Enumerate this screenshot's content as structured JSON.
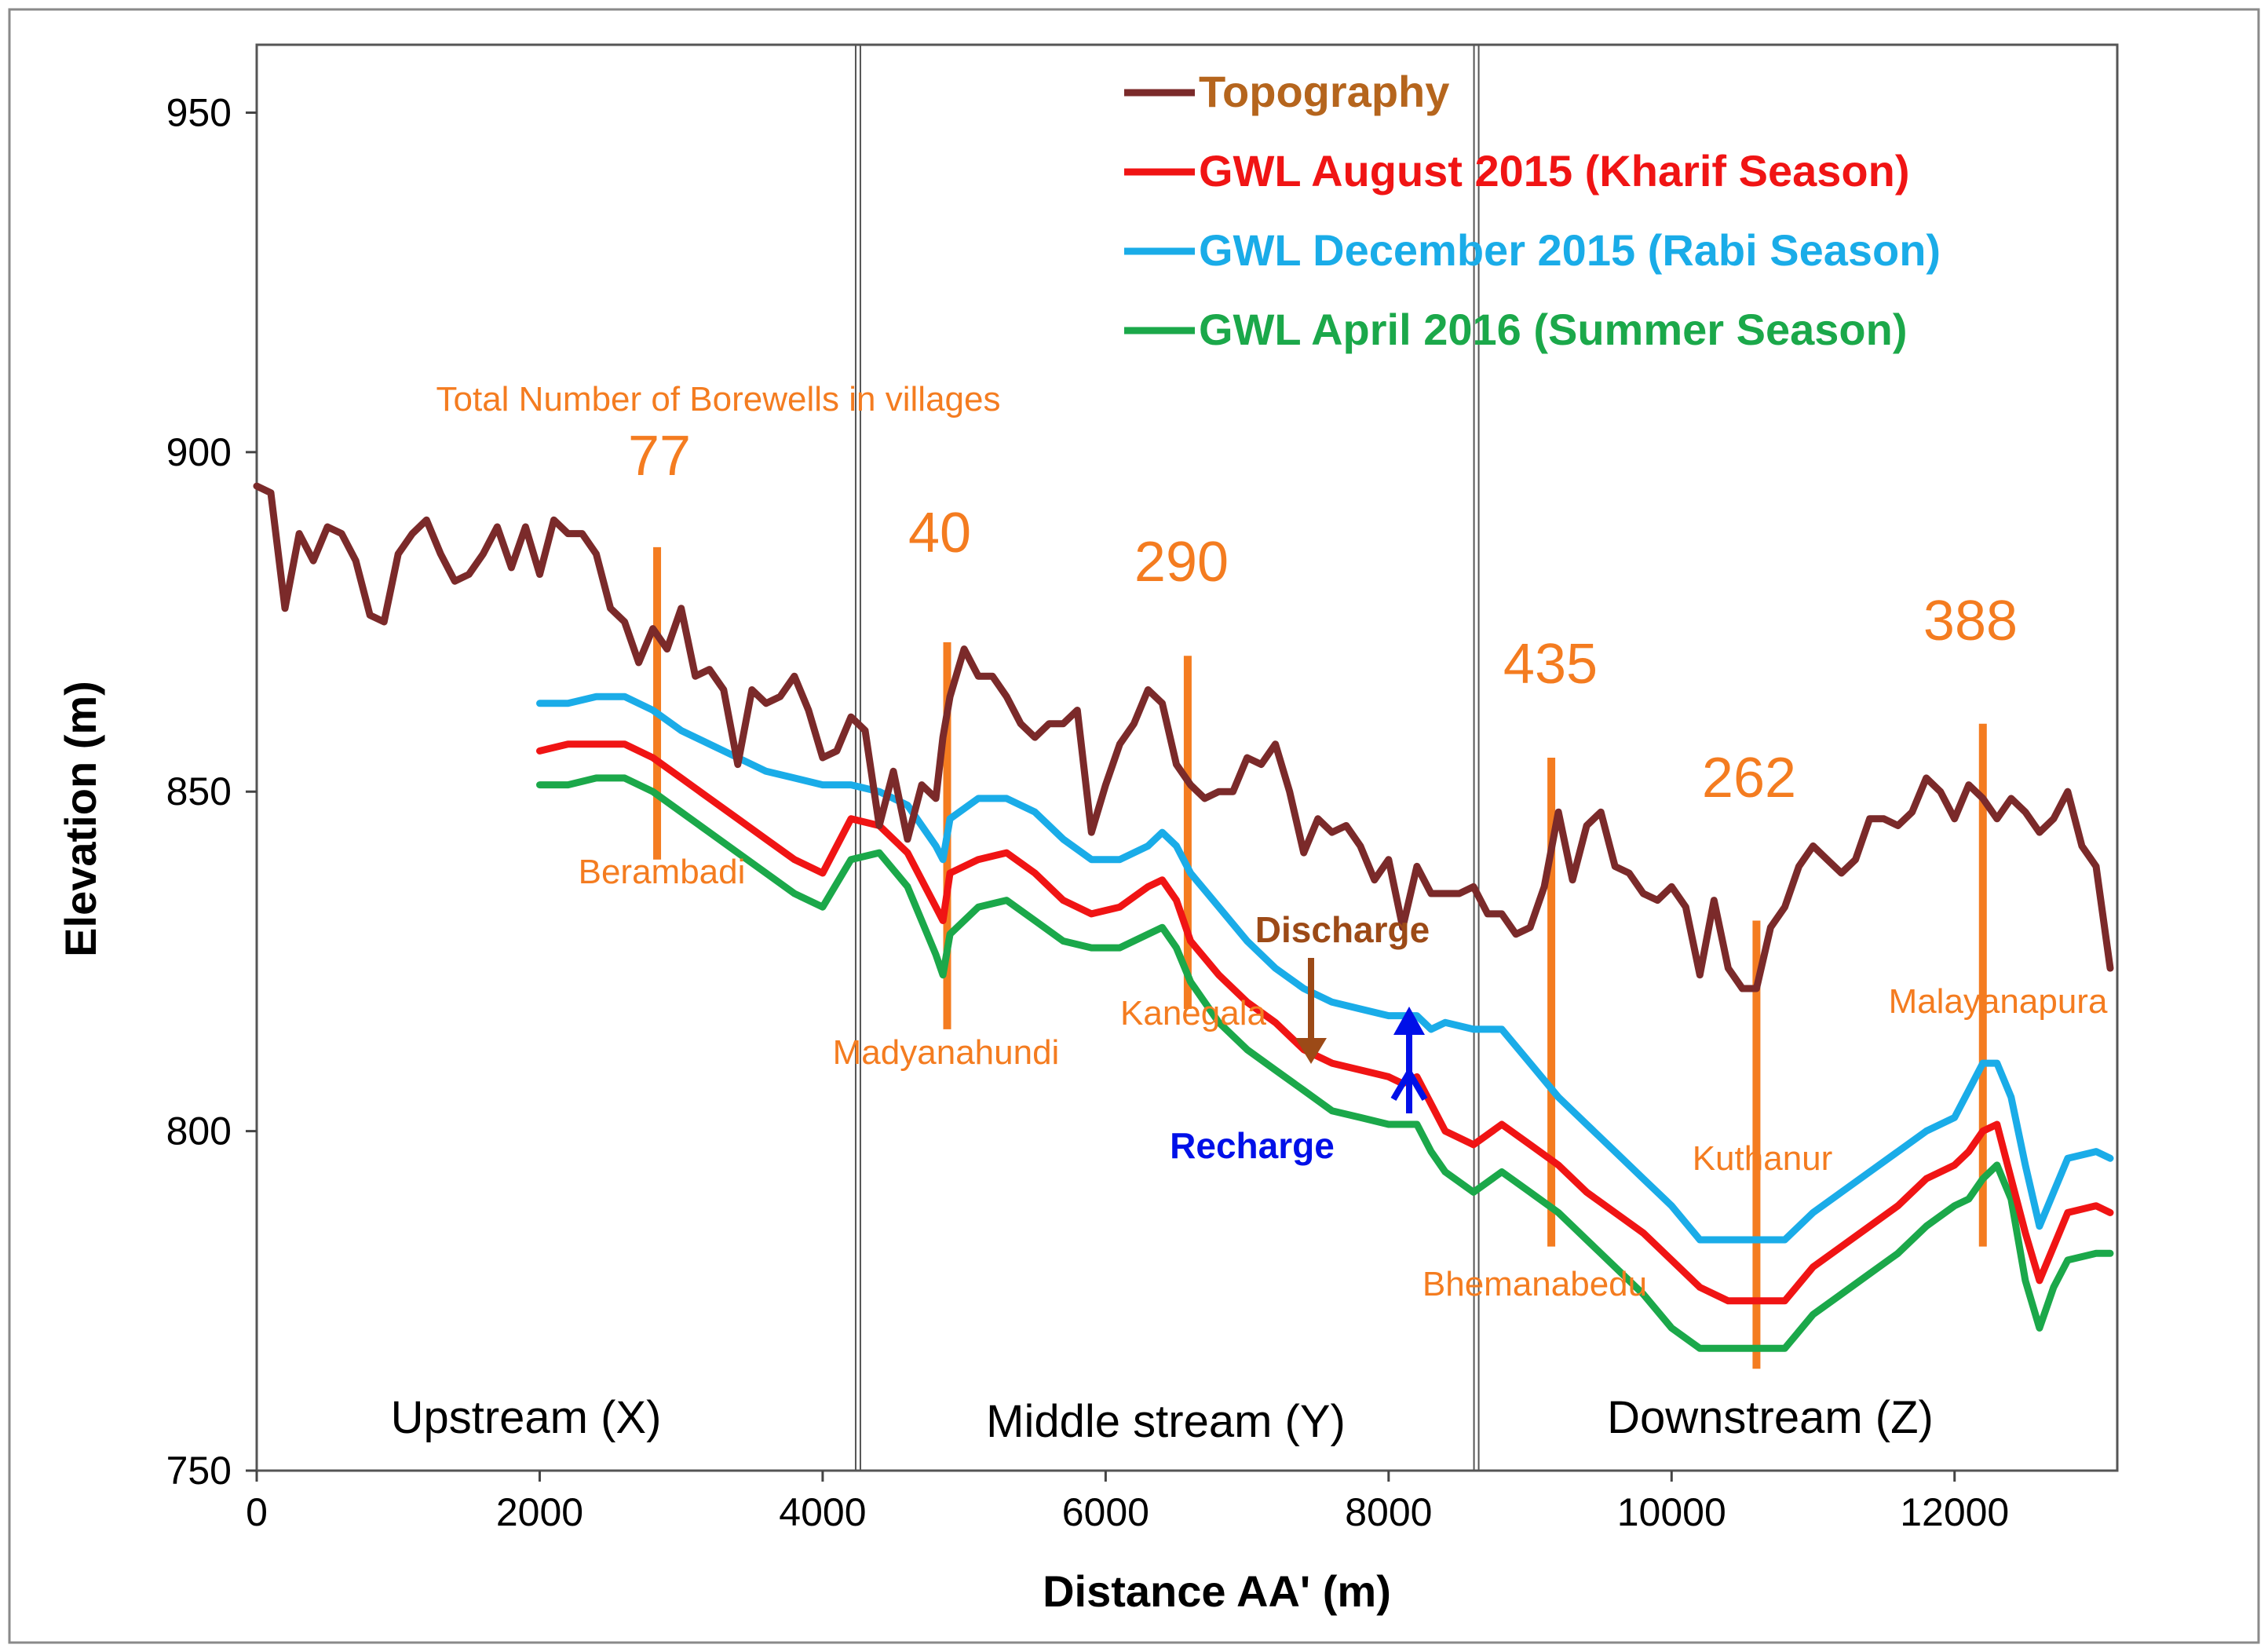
{
  "chart_data": {
    "type": "line",
    "xlabel": "Distance AA' (m)",
    "ylabel": "Elevation (m)",
    "xlim": [
      0,
      13150
    ],
    "ylim": [
      750,
      960
    ],
    "x_ticks": [
      0,
      2000,
      4000,
      6000,
      8000,
      10000,
      12000
    ],
    "x_tick_labels": [
      "0",
      "2000",
      "4000",
      "6000",
      "8000",
      "10000",
      "12000"
    ],
    "y_ticks": [
      750,
      800,
      850,
      900,
      950
    ],
    "y_tick_labels": [
      "750",
      "800",
      "850",
      "900",
      "950"
    ],
    "legend_position": "top-right",
    "series": [
      {
        "name": "Topography",
        "color": "#7B2A2A",
        "x": [
          0,
          100,
          200,
          300,
          400,
          500,
          600,
          700,
          800,
          900,
          1000,
          1100,
          1200,
          1300,
          1400,
          1500,
          1600,
          1700,
          1800,
          1900,
          2000,
          2100,
          2200,
          2300,
          2400,
          2500,
          2600,
          2700,
          2800,
          2900,
          3000,
          3100,
          3200,
          3300,
          3400,
          3500,
          3600,
          3700,
          3800,
          3900,
          4000,
          4100,
          4200,
          4300,
          4400,
          4500,
          4600,
          4700,
          4800,
          4850,
          4900,
          5000,
          5100,
          5200,
          5300,
          5400,
          5500,
          5600,
          5700,
          5800,
          5900,
          6000,
          6100,
          6200,
          6300,
          6400,
          6500,
          6600,
          6700,
          6800,
          6900,
          7000,
          7100,
          7200,
          7300,
          7400,
          7500,
          7600,
          7700,
          7800,
          7900,
          8000,
          8100,
          8200,
          8300,
          8400,
          8500,
          8600,
          8700,
          8800,
          8900,
          9000,
          9100,
          9200,
          9300,
          9400,
          9500,
          9600,
          9700,
          9800,
          9900,
          10000,
          10100,
          10200,
          10300,
          10400,
          10500,
          10600,
          10700,
          10800,
          10900,
          11000,
          11100,
          11200,
          11300,
          11400,
          11500,
          11600,
          11700,
          11800,
          11900,
          12000,
          12100,
          12200,
          12300,
          12400,
          12500,
          12600,
          12700,
          12800,
          12900,
          13000,
          13100
        ],
        "y": [
          895,
          894,
          877,
          888,
          884,
          889,
          888,
          884,
          876,
          875,
          885,
          888,
          890,
          885,
          881,
          882,
          885,
          889,
          883,
          889,
          882,
          890,
          888,
          888,
          885,
          877,
          875,
          869,
          874,
          871,
          877,
          867,
          868,
          865,
          854,
          865,
          863,
          864,
          867,
          862,
          855,
          856,
          861,
          859,
          845,
          853,
          843,
          851,
          849,
          858,
          864,
          871,
          867,
          867,
          864,
          860,
          858,
          860,
          860,
          862,
          844,
          851,
          857,
          860,
          865,
          863,
          854,
          851,
          849,
          850,
          850,
          855,
          854,
          857,
          850,
          841,
          846,
          844,
          845,
          842,
          837,
          840,
          830,
          839,
          835,
          835,
          835,
          836,
          832,
          832,
          829,
          830,
          836,
          847,
          837,
          845,
          847,
          839,
          838,
          835,
          834,
          836,
          833,
          823,
          834,
          824,
          821,
          821,
          830,
          833,
          839,
          842,
          840,
          838,
          840,
          846,
          846,
          845,
          847,
          852,
          850,
          846,
          851,
          849,
          846,
          849,
          847,
          844,
          846,
          850,
          842,
          839,
          824
        ]
      },
      {
        "name": "GWL August 2015 (Kharif Season)",
        "color": "#F01414",
        "x": [
          2000,
          2200,
          2400,
          2600,
          2800,
          3000,
          3200,
          3400,
          3600,
          3800,
          4000,
          4200,
          4400,
          4600,
          4800,
          4850,
          4900,
          5100,
          5300,
          5500,
          5700,
          5900,
          6100,
          6300,
          6400,
          6500,
          6600,
          6800,
          7000,
          7200,
          7400,
          7600,
          7800,
          8000,
          8100,
          8200,
          8300,
          8400,
          8600,
          8800,
          9000,
          9200,
          9400,
          9600,
          9800,
          10000,
          10200,
          10400,
          10600,
          10800,
          11000,
          11200,
          11400,
          11600,
          11800,
          12000,
          12100,
          12200,
          12300,
          12400,
          12500,
          12600,
          12700,
          12800,
          13000,
          13100
        ],
        "y": [
          856,
          857,
          857,
          857,
          855,
          852,
          849,
          846,
          843,
          840,
          838,
          846,
          845,
          841,
          833,
          831,
          838,
          840,
          841,
          838,
          834,
          832,
          833,
          836,
          837,
          834,
          828,
          823,
          819,
          816,
          812,
          810,
          809,
          808,
          807,
          808,
          804,
          800,
          798,
          801,
          798,
          795,
          791,
          788,
          785,
          781,
          777,
          775,
          775,
          775,
          780,
          783,
          786,
          789,
          793,
          795,
          797,
          800,
          801,
          793,
          785,
          778,
          783,
          788,
          789,
          788
        ]
      },
      {
        "name": "GWL December 2015 (Rabi Season)",
        "color": "#1AACE8",
        "x": [
          2000,
          2200,
          2400,
          2600,
          2800,
          3000,
          3200,
          3400,
          3600,
          3800,
          4000,
          4200,
          4400,
          4600,
          4800,
          4850,
          4900,
          5100,
          5300,
          5500,
          5700,
          5900,
          6100,
          6300,
          6400,
          6500,
          6600,
          6800,
          7000,
          7200,
          7400,
          7600,
          7800,
          8000,
          8100,
          8200,
          8300,
          8400,
          8600,
          8800,
          9000,
          9200,
          9400,
          9600,
          9800,
          10000,
          10200,
          10400,
          10600,
          10800,
          11000,
          11200,
          11400,
          11600,
          11800,
          12000,
          12100,
          12200,
          12300,
          12400,
          12500,
          12600,
          12700,
          12800,
          13000,
          13100
        ],
        "y": [
          863,
          863,
          864,
          864,
          862,
          859,
          857,
          855,
          853,
          852,
          851,
          851,
          850,
          848,
          842,
          840,
          846,
          849,
          849,
          847,
          843,
          840,
          840,
          842,
          844,
          842,
          838,
          833,
          828,
          824,
          821,
          819,
          818,
          817,
          817,
          817,
          815,
          816,
          815,
          815,
          810,
          805,
          801,
          797,
          793,
          789,
          784,
          784,
          784,
          784,
          788,
          791,
          794,
          797,
          800,
          802,
          806,
          810,
          810,
          805,
          795,
          786,
          791,
          796,
          797,
          796
        ]
      },
      {
        "name": "GWL April 2016 (Summer Season)",
        "color": "#1BA84A",
        "x": [
          2000,
          2200,
          2400,
          2600,
          2800,
          3000,
          3200,
          3400,
          3600,
          3800,
          4000,
          4200,
          4400,
          4600,
          4800,
          4850,
          4900,
          5100,
          5300,
          5500,
          5700,
          5900,
          6100,
          6300,
          6400,
          6500,
          6600,
          6800,
          7000,
          7200,
          7400,
          7600,
          7800,
          8000,
          8100,
          8200,
          8300,
          8400,
          8600,
          8800,
          9000,
          9200,
          9400,
          9600,
          9800,
          10000,
          10200,
          10400,
          10600,
          10800,
          11000,
          11200,
          11400,
          11600,
          11800,
          12000,
          12100,
          12200,
          12300,
          12400,
          12500,
          12600,
          12700,
          12800,
          13000,
          13100
        ],
        "y": [
          851,
          851,
          852,
          852,
          850,
          847,
          844,
          841,
          838,
          835,
          833,
          840,
          841,
          836,
          826,
          823,
          829,
          833,
          834,
          831,
          828,
          827,
          827,
          829,
          830,
          827,
          822,
          816,
          812,
          809,
          806,
          803,
          802,
          801,
          801,
          801,
          797,
          794,
          791,
          794,
          791,
          788,
          784,
          780,
          776,
          771,
          768,
          768,
          768,
          768,
          773,
          776,
          779,
          782,
          786,
          789,
          790,
          793,
          795,
          790,
          778,
          771,
          777,
          781,
          782,
          782
        ]
      }
    ],
    "boreholes": [
      {
        "x": 2830,
        "top": 886,
        "bottom": 840,
        "count": "77",
        "village": "Berambadi"
      },
      {
        "x": 4880,
        "top": 872,
        "bottom": 815,
        "count": "40",
        "village": "Madyanahundi"
      },
      {
        "x": 6580,
        "top": 870,
        "bottom": 818,
        "count": "290",
        "village": "Kanegala"
      },
      {
        "x": 9150,
        "top": 855,
        "bottom": 783,
        "count": "435",
        "village": "Bhemanabedu"
      },
      {
        "x": 10600,
        "top": 831,
        "bottom": 765,
        "count": "262",
        "village": "Kuthanur"
      },
      {
        "x": 12200,
        "top": 860,
        "bottom": 783,
        "count": "388",
        "village": "Malayanapura"
      }
    ],
    "zone_dividers": [
      4250,
      8620
    ],
    "zones": [
      "Upstream (X)",
      "Middle stream (Y)",
      "Downstream (Z)"
    ],
    "annotations": {
      "borewell_note": "Total Number of Borewells in villages",
      "discharge_label": "Discharge",
      "recharge_label": "Recharge"
    }
  }
}
